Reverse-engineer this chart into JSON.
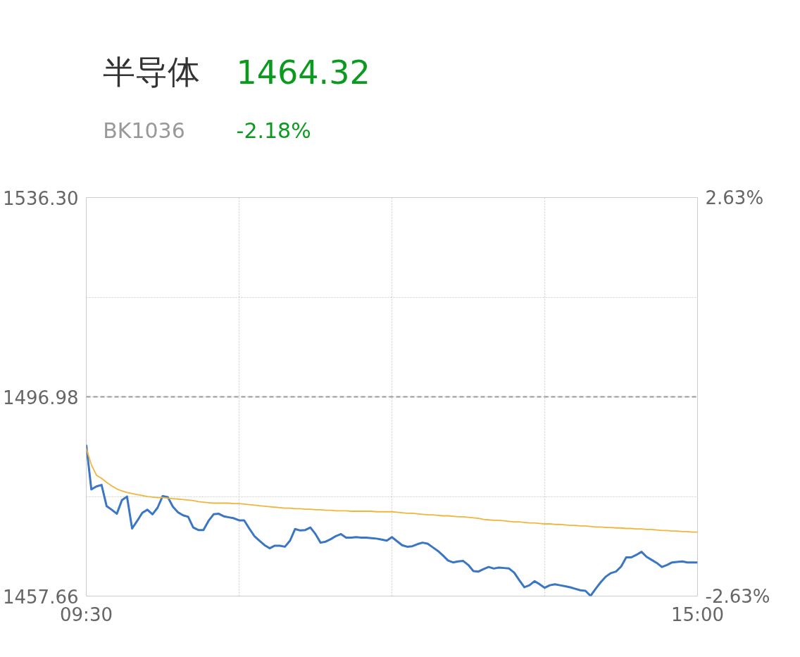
{
  "chart_data": {
    "type": "line",
    "title": "半导体",
    "subtitle": "BK1036",
    "annotations": [
      "1464.32",
      "-2.18%"
    ],
    "categories": [
      "09:30",
      null,
      null,
      null,
      null,
      null,
      null,
      null,
      null,
      null,
      null,
      null,
      null,
      null,
      null,
      null,
      null,
      null,
      null,
      null,
      null,
      null,
      null,
      null,
      null,
      null,
      null,
      null,
      null,
      null,
      null,
      null,
      null,
      null,
      null,
      null,
      null,
      null,
      null,
      null,
      null,
      null,
      null,
      null,
      null,
      null,
      null,
      null,
      null,
      null,
      null,
      null,
      null,
      null,
      null,
      null,
      null,
      null,
      null,
      null,
      null,
      null,
      null,
      null,
      null,
      null,
      null,
      null,
      null,
      null,
      null,
      null,
      null,
      null,
      null,
      null,
      null,
      null,
      null,
      null,
      null,
      null,
      null,
      null,
      null,
      null,
      null,
      null,
      null,
      null,
      null,
      null,
      null,
      null,
      null,
      null,
      null,
      null,
      null,
      null,
      null,
      null,
      null,
      null,
      null,
      null,
      null,
      null,
      null,
      null,
      null,
      null,
      null,
      null,
      null,
      null,
      null,
      null,
      null,
      null,
      "15:00"
    ],
    "series": [
      {
        "color": "#3a76c4",
        "values": [
          1487.5,
          1478.7,
          1479.3,
          1479.6,
          1475.4,
          1474.7,
          1473.9,
          1476.6,
          1477.3,
          1471.0,
          1472.5,
          1474.1,
          1474.7,
          1473.8,
          1475.1,
          1477.4,
          1477.2,
          1475.3,
          1474.2,
          1473.6,
          1473.3,
          1471.2,
          1470.7,
          1470.7,
          1472.5,
          1473.8,
          1473.9,
          1473.4,
          1473.2,
          1473.0,
          1472.6,
          1472.6,
          1471.0,
          1469.5,
          1468.6,
          1467.7,
          1467.1,
          1467.6,
          1467.6,
          1467.4,
          1468.6,
          1470.9,
          1470.6,
          1470.7,
          1471.2,
          1469.9,
          1468.2,
          1468.4,
          1468.9,
          1469.5,
          1469.9,
          1469.2,
          1469.2,
          1469.3,
          1469.2,
          1469.2,
          1469.1,
          1469.0,
          1468.8,
          1468.6,
          1469.3,
          1468.5,
          1467.7,
          1467.4,
          1467.5,
          1467.9,
          1468.2,
          1468.0,
          1467.3,
          1466.6,
          1465.7,
          1464.7,
          1464.3,
          1464.5,
          1464.6,
          1463.8,
          1462.6,
          1462.5,
          1463.0,
          1463.4,
          1463.1,
          1463.3,
          1463.2,
          1463.1,
          1462.3,
          1460.8,
          1459.4,
          1459.8,
          1460.6,
          1460.0,
          1459.3,
          1459.8,
          1460.0,
          1459.8,
          1459.6,
          1459.4,
          1459.1,
          1458.8,
          1458.7,
          1457.7,
          1459.1,
          1460.4,
          1461.5,
          1462.2,
          1462.5,
          1463.5,
          1465.3,
          1465.3,
          1465.8,
          1466.4,
          1465.4,
          1464.8,
          1464.2,
          1463.4,
          1463.8,
          1464.3,
          1464.4,
          1464.5,
          1464.3,
          1464.3,
          1464.3
        ]
      },
      {
        "color": "#f2b53c",
        "values": [
          1486.8,
          1483.6,
          1481.5,
          1480.9,
          1480.1,
          1479.4,
          1478.8,
          1478.4,
          1478.1,
          1477.9,
          1477.7,
          1477.5,
          1477.3,
          1477.2,
          1477.1,
          1477.1,
          1477.0,
          1476.9,
          1476.8,
          1476.7,
          1476.6,
          1476.5,
          1476.3,
          1476.2,
          1476.1,
          1476.0,
          1476.0,
          1476.0,
          1476.0,
          1475.9,
          1475.9,
          1475.8,
          1475.7,
          1475.6,
          1475.5,
          1475.4,
          1475.3,
          1475.2,
          1475.1,
          1475.0,
          1475.0,
          1474.9,
          1474.9,
          1474.8,
          1474.8,
          1474.7,
          1474.7,
          1474.6,
          1474.6,
          1474.5,
          1474.5,
          1474.5,
          1474.4,
          1474.4,
          1474.4,
          1474.4,
          1474.4,
          1474.3,
          1474.3,
          1474.3,
          1474.3,
          1474.2,
          1474.1,
          1474.0,
          1474.0,
          1473.9,
          1473.8,
          1473.7,
          1473.7,
          1473.6,
          1473.5,
          1473.5,
          1473.4,
          1473.3,
          1473.3,
          1473.2,
          1473.1,
          1473.0,
          1472.8,
          1472.7,
          1472.6,
          1472.6,
          1472.5,
          1472.4,
          1472.3,
          1472.3,
          1472.2,
          1472.1,
          1472.1,
          1472.0,
          1471.9,
          1471.9,
          1471.8,
          1471.8,
          1471.7,
          1471.6,
          1471.6,
          1471.5,
          1471.5,
          1471.4,
          1471.3,
          1471.3,
          1471.2,
          1471.2,
          1471.1,
          1471.1,
          1471.0,
          1471.0,
          1470.9,
          1470.9,
          1470.8,
          1470.8,
          1470.7,
          1470.6,
          1470.6,
          1470.5,
          1470.5,
          1470.4,
          1470.4,
          1470.3,
          1470.3
        ]
      }
    ],
    "ylim": [
      1457.66,
      1536.3
    ],
    "yticks": [
      {
        "value": 1457.66,
        "label": "1457.66"
      },
      {
        "value": 1477.32,
        "label": null
      },
      {
        "value": 1496.98,
        "label": "1496.98"
      },
      {
        "value": 1516.64,
        "label": null
      },
      {
        "value": 1536.3,
        "label": "1536.30"
      }
    ],
    "y2lim": [
      -2.63,
      2.63
    ],
    "y2ticks": [
      {
        "value": -2.63,
        "label": "-2.63%"
      },
      {
        "value": 2.63,
        "label": "2.63%"
      }
    ],
    "ref_lines": [
      {
        "axis": "y",
        "value": 1496.98,
        "color": "#999999",
        "line_style": "dashed"
      }
    ],
    "grid": true,
    "marker": "none",
    "line_style": "solid"
  }
}
